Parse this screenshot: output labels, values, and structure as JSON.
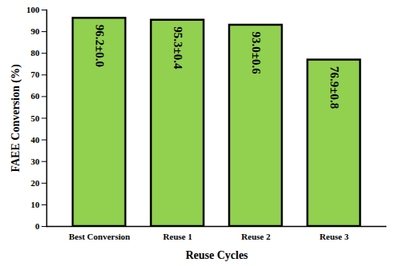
{
  "chart_data": {
    "type": "bar",
    "categories": [
      "Best Conversion",
      "Reuse 1",
      "Reuse 2",
      "Reuse 3"
    ],
    "values": [
      96.2,
      95.3,
      93.0,
      76.9
    ],
    "value_labels": [
      "96.2±0.0",
      "95.3±0.4",
      "93.0±0.6",
      "76.9±0.8"
    ],
    "color": "#92d050",
    "xlabel": "Reuse Cycles",
    "ylabel": "FAEE Conversion (%)",
    "ylim": [
      0,
      100
    ],
    "yticks": [
      0,
      10,
      20,
      30,
      40,
      50,
      60,
      70,
      80,
      90,
      100
    ],
    "grid": false,
    "data_labels": true
  }
}
